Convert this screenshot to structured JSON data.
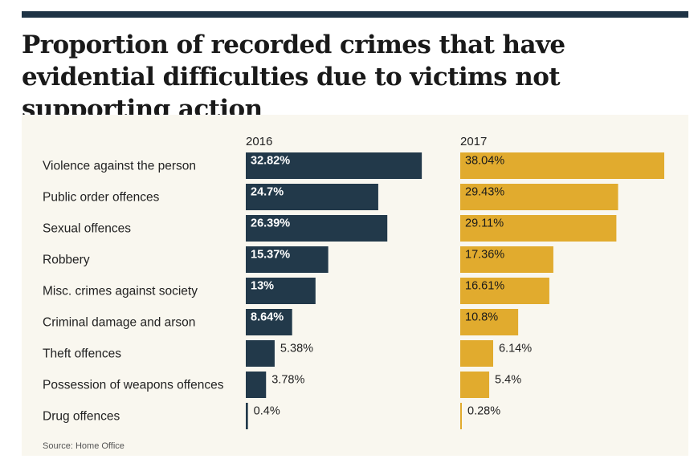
{
  "title": "Proportion of recorded crimes that have evidential difficulties due to victims not supporting action",
  "source": "Source: Home Office",
  "colors": {
    "2016": "#22394a",
    "2017": "#e1ab2e",
    "background": "#f9f7ef",
    "rule": "#1e3345"
  },
  "chart_data": {
    "type": "bar",
    "orientation": "horizontal",
    "categories": [
      "Violence against the person",
      "Public order offences",
      "Sexual offences",
      "Robbery",
      "Misc. crimes against society",
      "Criminal damage and arson",
      "Theft offences",
      "Possession of weapons offences",
      "Drug offences"
    ],
    "series": [
      {
        "name": "2016",
        "values": [
          32.82,
          24.7,
          26.39,
          15.37,
          13,
          8.64,
          5.38,
          3.78,
          0.4
        ],
        "labels": [
          "32.82%",
          "24.7%",
          "26.39%",
          "15.37%",
          "13%",
          "8.64%",
          "5.38%",
          "3.78%",
          "0.4%"
        ]
      },
      {
        "name": "2017",
        "values": [
          38.04,
          29.43,
          29.11,
          17.36,
          16.61,
          10.8,
          6.14,
          5.4,
          0.28
        ],
        "labels": [
          "38.04%",
          "29.43%",
          "29.11%",
          "17.36%",
          "16.61%",
          "10.8%",
          "6.14%",
          "5.4%",
          "0.28%"
        ]
      }
    ],
    "grid": false,
    "legend": "none"
  }
}
